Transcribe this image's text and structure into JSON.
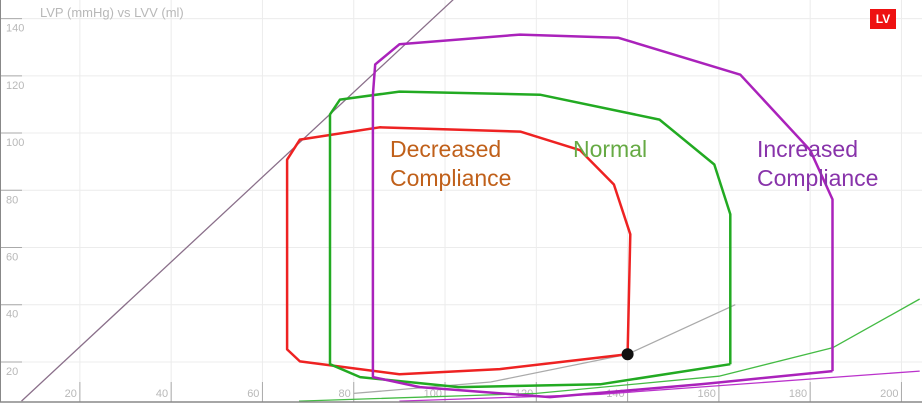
{
  "chart_data": {
    "type": "line",
    "title": "LVP (mmHg) vs LVV (ml)",
    "badge": "LV",
    "xlim": [
      2.5,
      204.5
    ],
    "ylim": [
      6,
      146.5
    ],
    "xticks": [
      20,
      40,
      60,
      80,
      100,
      120,
      140,
      160,
      180,
      200
    ],
    "yticks": [
      20,
      40,
      60,
      80,
      100,
      120,
      140
    ],
    "grid": true,
    "series": [
      {
        "color": "#8a6f8a",
        "x": [
          7.2,
          101.8
        ],
        "values": [
          6.3,
          146.6
        ]
      },
      {
        "color": "#aaaaaa",
        "x": [
          80,
          110,
          140,
          163.6
        ],
        "values": [
          9,
          13,
          22.7,
          40
        ]
      },
      {
        "color": "#44bb44",
        "x": [
          68,
          120,
          160,
          185,
          204
        ],
        "values": [
          6.3,
          9,
          15,
          25,
          42
        ]
      },
      {
        "color": "#bb33cc",
        "x": [
          90,
          134,
          204
        ],
        "values": [
          6.3,
          8.7,
          16.8
        ]
      },
      {
        "color": "#ee2222",
        "x": [
          140,
          140.6,
          137,
          129.6,
          116.5,
          85.7,
          68.2,
          65.4,
          65.4,
          68.2,
          90,
          112,
          140
        ],
        "values": [
          22.7,
          64.6,
          82,
          94,
          100.5,
          102,
          97.7,
          90.7,
          24.4,
          20.2,
          15.7,
          17.5,
          22.7
        ]
      },
      {
        "color": "#22aa22",
        "x": [
          162.5,
          162.5,
          159,
          147,
          120.8,
          90,
          77,
          74.8,
          74.8,
          81.4,
          103,
          134,
          162.5
        ],
        "values": [
          19.2,
          71.6,
          89,
          104.7,
          113.4,
          114.5,
          111.7,
          106.5,
          19.2,
          14.7,
          11.2,
          12.2,
          19.2
        ]
      },
      {
        "color": "#aa22bb",
        "x": [
          184.9,
          184.9,
          180,
          164.7,
          138,
          116.4,
          90,
          84.7,
          84.2,
          84.2,
          94.5,
          123,
          156,
          184.9
        ],
        "values": [
          16.8,
          76.8,
          94,
          120.4,
          133.3,
          134.4,
          131,
          124,
          113.4,
          14.7,
          11.2,
          7.7,
          12.2,
          16.8
        ]
      }
    ],
    "point": {
      "x": 140,
      "y": 22.7,
      "color": "#111111"
    },
    "annotations": [
      {
        "lines": [
          "Decreased",
          "Compliance"
        ],
        "color": "#c0601a"
      },
      {
        "lines": [
          "Normal"
        ],
        "color": "#66aa44"
      },
      {
        "lines": [
          "Increased",
          "Compliance"
        ],
        "color": "#8833aa"
      }
    ]
  }
}
